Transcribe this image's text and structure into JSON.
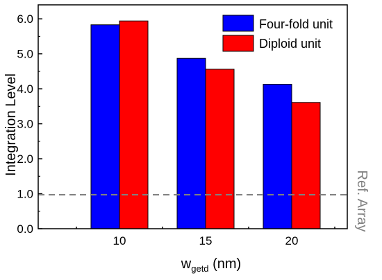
{
  "chart_data": {
    "type": "bar",
    "xlabel_main": "w",
    "xlabel_sub": "getd",
    "xlabel_unit": " (nm)",
    "ylabel": "Integration Level",
    "categories": [
      "10",
      "15",
      "20"
    ],
    "series": [
      {
        "name": "Four-fold unit",
        "color": "#0000ff",
        "values": [
          5.83,
          4.87,
          4.13
        ]
      },
      {
        "name": "Diploid unit",
        "color": "#ff0000",
        "values": [
          5.94,
          4.56,
          3.61
        ]
      }
    ],
    "ylim": [
      0,
      6.4
    ],
    "yticks": [
      "0.0",
      "1.0",
      "2.0",
      "3.0",
      "4.0",
      "5.0",
      "6.0"
    ],
    "reference": {
      "value": 0.97,
      "label": "Ref. Array",
      "color": "#808080"
    },
    "legend_position": "top-right",
    "grid": false
  }
}
